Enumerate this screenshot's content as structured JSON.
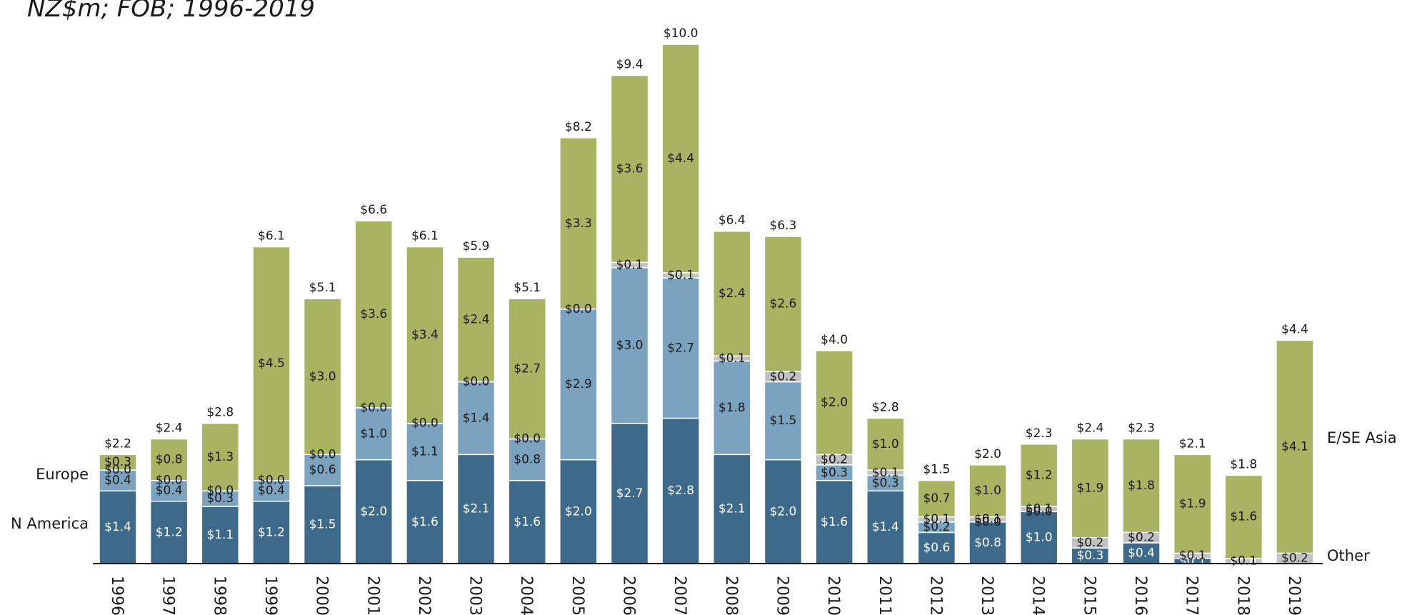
{
  "chart_data": {
    "type": "bar",
    "stacked": true,
    "title": "NZ$m; FOB; 1996-2019",
    "categories": [
      "1996",
      "1997",
      "1998",
      "1999",
      "2000",
      "2001",
      "2002",
      "2003",
      "2004",
      "2005",
      "2006",
      "2007",
      "2008",
      "2009",
      "2010",
      "2011",
      "2012",
      "2013",
      "2014",
      "2015",
      "2016",
      "2017",
      "2018",
      "2019"
    ],
    "series": [
      {
        "name": "N America",
        "color": "#3d6a8a",
        "values": [
          1.4,
          1.2,
          1.1,
          1.2,
          1.5,
          2.0,
          1.6,
          2.1,
          1.6,
          2.0,
          2.7,
          2.8,
          2.1,
          2.0,
          1.6,
          1.4,
          0.6,
          0.8,
          1.0,
          0.3,
          0.4,
          0.1,
          0.0,
          0.0
        ],
        "labels": [
          "$1.4",
          "$1.2",
          "$1.1",
          "$1.2",
          "$1.5",
          "$2.0",
          "$1.6",
          "$2.1",
          "$1.6",
          "$2.0",
          "$2.7",
          "$2.8",
          "$2.1",
          "$2.0",
          "$1.6",
          "$1.4",
          "$0.6",
          "$0.8",
          "$1.0",
          "$0.3",
          "$0.4",
          "$0.1",
          "$0.0",
          ""
        ]
      },
      {
        "name": "Europe",
        "color": "#7ba3bf",
        "values": [
          0.4,
          0.4,
          0.3,
          0.4,
          0.6,
          1.0,
          1.1,
          1.4,
          0.8,
          2.9,
          3.0,
          2.7,
          1.8,
          1.5,
          0.3,
          0.3,
          0.2,
          0.0,
          0.0,
          0.0,
          0.0,
          0.0,
          0.0,
          0.0
        ],
        "labels": [
          "$0.4",
          "$0.4",
          "$0.3",
          "$0.4",
          "$0.6",
          "$1.0",
          "$1.1",
          "$1.4",
          "$0.8",
          "$2.9",
          "$3.0",
          "$2.7",
          "$1.8",
          "$1.5",
          "$0.3",
          "$0.3",
          "$0.2",
          "$0.0",
          "$0.0",
          "",
          "",
          "",
          "",
          ""
        ]
      },
      {
        "name": "Other",
        "color": "#c2c2c2",
        "values": [
          0.0,
          0.0,
          0.0,
          0.0,
          0.0,
          0.0,
          0.0,
          0.0,
          0.0,
          0.0,
          0.1,
          0.1,
          0.1,
          0.2,
          0.2,
          0.1,
          0.1,
          0.1,
          0.1,
          0.2,
          0.2,
          0.1,
          0.1,
          0.2
        ],
        "labels": [
          "$0.0",
          "$0.0",
          "$0.0",
          "$0.0",
          "$0.0",
          "$0.0",
          "$0.0",
          "$0.0",
          "$0.0",
          "$0.0",
          "$0.1",
          "$0.1",
          "$0.1",
          "$0.2",
          "$0.2",
          "$0.1",
          "$0.1",
          "$0.1",
          "$0.1",
          "$0.2",
          "$0.2",
          "$0.1",
          "$0.1",
          "$0.2"
        ]
      },
      {
        "name": "E/SE Asia",
        "color": "#a9b462",
        "values": [
          0.3,
          0.8,
          1.3,
          4.5,
          3.0,
          3.6,
          3.4,
          2.4,
          2.7,
          3.3,
          3.6,
          4.4,
          2.4,
          2.6,
          2.0,
          1.0,
          0.7,
          1.0,
          1.2,
          1.9,
          1.8,
          1.9,
          1.6,
          4.1
        ],
        "labels": [
          "$0.3",
          "$0.8",
          "$1.3",
          "$4.5",
          "$3.0",
          "$3.6",
          "$3.4",
          "$2.4",
          "$2.7",
          "$3.3",
          "$3.6",
          "$4.4",
          "$2.4",
          "$2.6",
          "$2.0",
          "$1.0",
          "$0.7",
          "$1.0",
          "$1.2",
          "$1.9",
          "$1.8",
          "$1.9",
          "$1.6",
          "$4.1"
        ]
      }
    ],
    "totals": [
      "$2.2",
      "$2.4",
      "$2.8",
      "$6.1",
      "$5.1",
      "$6.6",
      "$6.1",
      "$5.9",
      "$5.1",
      "$8.2",
      "$9.4",
      "$10.0",
      "$6.4",
      "$6.3",
      "$4.0",
      "$2.8",
      "$1.5",
      "$2.0",
      "$2.3",
      "$2.4",
      "$2.3",
      "$2.1",
      "$1.8",
      "$4.4"
    ],
    "series_labels_left": [
      "Europe",
      "N America"
    ],
    "series_labels_right": [
      "E/SE Asia",
      "Other"
    ],
    "ylim": [
      0,
      10.0
    ],
    "grid": false,
    "legend": "direct labels at left and right edges"
  }
}
